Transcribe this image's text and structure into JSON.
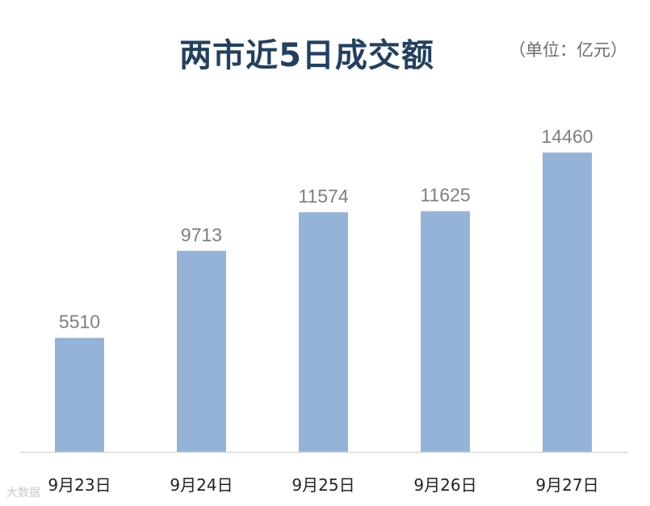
{
  "chart_data": {
    "type": "bar",
    "title": "两市近5日成交额",
    "unit_label": "（单位：亿元）",
    "categories": [
      "9月23日",
      "9月24日",
      "9月25日",
      "9月26日",
      "9月27日"
    ],
    "values": [
      5510,
      9713,
      11574,
      11625,
      14460
    ],
    "xlabel": "",
    "ylabel": "",
    "ylim": [
      0,
      14460
    ],
    "grid": false,
    "legend": "none",
    "bar_color": "#95b3d7",
    "value_label_color": "#7f7f7f",
    "axis_color": "#d9d9d9"
  },
  "watermark": "大数据"
}
